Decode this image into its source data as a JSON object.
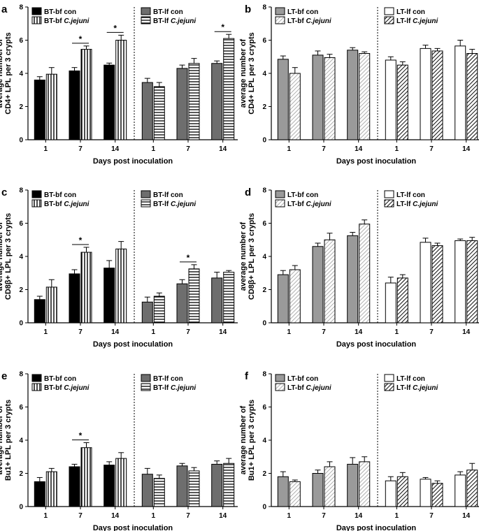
{
  "figure": {
    "xlabel": "Days post inoculation",
    "day_labels": [
      "1",
      "7",
      "14"
    ],
    "ylim": [
      0,
      8
    ],
    "yticks": [
      0,
      2,
      4,
      6,
      8
    ]
  },
  "colors": {
    "bt_bf_con": "#000000",
    "bt_lf_con": "#6e6e6e",
    "lt_bf_con": "#9a9a9a",
    "lt_lf_con": "#ffffff",
    "pattern_stroke": "#000000"
  },
  "chart_data": [
    {
      "panel": "a",
      "type": "bar",
      "ylabel_line1": "average number of",
      "ylabel_line2": "CD4+ LPL per 3 crypts",
      "legend": [
        {
          "group": "left",
          "name": "BT-bf con",
          "italic": "",
          "style": "solid_black"
        },
        {
          "group": "left",
          "name": "BT-bf ",
          "italic": "C.jejuni",
          "style": "vstripe"
        },
        {
          "group": "right",
          "name": "BT-lf con",
          "italic": "",
          "style": "solid_gray"
        },
        {
          "group": "right",
          "name": "BT-lf ",
          "italic": "C.jejuni",
          "style": "hstripe"
        }
      ],
      "categories": [
        "1",
        "7",
        "14"
      ],
      "series": [
        {
          "name": "BT-bf con",
          "style": "solid_black",
          "group": "left",
          "values": [
            3.6,
            4.15,
            4.5
          ],
          "errors": [
            0.2,
            0.2,
            0.12
          ]
        },
        {
          "name": "BT-bf C.jejuni",
          "style": "vstripe",
          "group": "left",
          "values": [
            3.95,
            5.45,
            6.0
          ],
          "errors": [
            0.4,
            0.2,
            0.3
          ]
        },
        {
          "name": "BT-lf con",
          "style": "solid_gray",
          "group": "right",
          "values": [
            3.45,
            4.3,
            4.6
          ],
          "errors": [
            0.25,
            0.2,
            0.15
          ]
        },
        {
          "name": "BT-lf C.jejuni",
          "style": "hstripe",
          "group": "right",
          "values": [
            3.2,
            4.6,
            6.1
          ],
          "errors": [
            0.25,
            0.3,
            0.25
          ]
        }
      ],
      "significance": [
        {
          "group": "left",
          "day": 1,
          "label": "*"
        },
        {
          "group": "left",
          "day": 2,
          "label": "*"
        },
        {
          "group": "right",
          "day": 2,
          "label": "*"
        }
      ]
    },
    {
      "panel": "b",
      "type": "bar",
      "ylabel_line1": "average number of",
      "ylabel_line2": "CD4+ LPL per 3 crypts",
      "legend": [
        {
          "group": "left",
          "name": "LT-bf con",
          "italic": "",
          "style": "solid_light"
        },
        {
          "group": "left",
          "name": "LT-bf ",
          "italic": "C.jejuni",
          "style": "dstripe_light"
        },
        {
          "group": "right",
          "name": "LT-lf con",
          "italic": "",
          "style": "solid_white"
        },
        {
          "group": "right",
          "name": "LT-lf ",
          "italic": "C.jejuni",
          "style": "dstripe_bold"
        }
      ],
      "categories": [
        "1",
        "7",
        "14"
      ],
      "series": [
        {
          "name": "LT-bf con",
          "style": "solid_light",
          "group": "left",
          "values": [
            4.85,
            5.1,
            5.4
          ],
          "errors": [
            0.2,
            0.25,
            0.15
          ]
        },
        {
          "name": "LT-bf C.jejuni",
          "style": "dstripe_light",
          "group": "left",
          "values": [
            4.0,
            4.95,
            5.2
          ],
          "errors": [
            0.35,
            0.2,
            0.1
          ]
        },
        {
          "name": "LT-lf con",
          "style": "solid_white",
          "group": "right",
          "values": [
            4.8,
            5.5,
            5.65
          ],
          "errors": [
            0.2,
            0.2,
            0.35
          ]
        },
        {
          "name": "LT-lf C.jejuni",
          "style": "dstripe_bold",
          "group": "right",
          "values": [
            4.5,
            5.35,
            5.2
          ],
          "errors": [
            0.2,
            0.15,
            0.25
          ]
        }
      ],
      "significance": []
    },
    {
      "panel": "c",
      "type": "bar",
      "ylabel_line1": "average number of",
      "ylabel_line2": "CD8β+ LPL per 3 crypts",
      "legend": [
        {
          "group": "left",
          "name": "BT-bf con",
          "italic": "",
          "style": "solid_black"
        },
        {
          "group": "left",
          "name": "BT-bf ",
          "italic": "C.jejuni",
          "style": "vstripe"
        },
        {
          "group": "right",
          "name": "BT-lf con",
          "italic": "",
          "style": "solid_gray"
        },
        {
          "group": "right",
          "name": "BT-lf ",
          "italic": "C.jejuni",
          "style": "hstripe"
        }
      ],
      "categories": [
        "1",
        "7",
        "14"
      ],
      "series": [
        {
          "name": "BT-bf con",
          "style": "solid_black",
          "group": "left",
          "values": [
            1.4,
            2.95,
            3.3
          ],
          "errors": [
            0.2,
            0.25,
            0.45
          ]
        },
        {
          "name": "BT-bf C.jejuni",
          "style": "vstripe",
          "group": "left",
          "values": [
            2.15,
            4.25,
            4.45
          ],
          "errors": [
            0.45,
            0.3,
            0.45
          ]
        },
        {
          "name": "BT-lf con",
          "style": "solid_gray",
          "group": "right",
          "values": [
            1.25,
            2.35,
            2.7
          ],
          "errors": [
            0.3,
            0.25,
            0.35
          ]
        },
        {
          "name": "BT-lf C.jejuni",
          "style": "hstripe",
          "group": "right",
          "values": [
            1.6,
            3.25,
            3.05
          ],
          "errors": [
            0.2,
            0.25,
            0.1
          ]
        }
      ],
      "significance": [
        {
          "group": "left",
          "day": 1,
          "label": "*"
        },
        {
          "group": "right",
          "day": 1,
          "label": "*"
        }
      ]
    },
    {
      "panel": "d",
      "type": "bar",
      "ylabel_line1": "average number of",
      "ylabel_line2": "CD8β+ LPL per 3 crypts",
      "legend": [
        {
          "group": "left",
          "name": "LT-bf con",
          "italic": "",
          "style": "solid_light"
        },
        {
          "group": "left",
          "name": "LT-bf ",
          "italic": "C.jejuni",
          "style": "dstripe_light"
        },
        {
          "group": "right",
          "name": "LT-lf con",
          "italic": "",
          "style": "solid_white"
        },
        {
          "group": "right",
          "name": "LT-lf ",
          "italic": "C.jejuni",
          "style": "dstripe_bold"
        }
      ],
      "categories": [
        "1",
        "7",
        "14"
      ],
      "series": [
        {
          "name": "LT-bf con",
          "style": "solid_light",
          "group": "left",
          "values": [
            2.9,
            4.6,
            5.25
          ],
          "errors": [
            0.25,
            0.2,
            0.2
          ]
        },
        {
          "name": "LT-bf C.jejuni",
          "style": "dstripe_light",
          "group": "left",
          "values": [
            3.2,
            5.0,
            5.95
          ],
          "errors": [
            0.25,
            0.4,
            0.25
          ]
        },
        {
          "name": "LT-lf con",
          "style": "solid_white",
          "group": "right",
          "values": [
            2.4,
            4.85,
            4.95
          ],
          "errors": [
            0.35,
            0.25,
            0.1
          ]
        },
        {
          "name": "LT-lf C.jejuni",
          "style": "dstripe_bold",
          "group": "right",
          "values": [
            2.7,
            4.65,
            4.95
          ],
          "errors": [
            0.2,
            0.15,
            0.2
          ]
        }
      ],
      "significance": []
    },
    {
      "panel": "e",
      "type": "bar",
      "ylabel_line1": "average number of",
      "ylabel_line2": "Bu1+ LPL per 3 crypts",
      "legend": [
        {
          "group": "left",
          "name": "BT-bf con",
          "italic": "",
          "style": "solid_black"
        },
        {
          "group": "left",
          "name": "BT-bf ",
          "italic": "C.jejuni",
          "style": "vstripe"
        },
        {
          "group": "right",
          "name": "BT-lf con",
          "italic": "",
          "style": "solid_gray"
        },
        {
          "group": "right",
          "name": "BT-lf ",
          "italic": "C.jejuni",
          "style": "hstripe"
        }
      ],
      "categories": [
        "1",
        "7",
        "14"
      ],
      "series": [
        {
          "name": "BT-bf con",
          "style": "solid_black",
          "group": "left",
          "values": [
            1.5,
            2.4,
            2.5
          ],
          "errors": [
            0.25,
            0.15,
            0.2
          ]
        },
        {
          "name": "BT-bf C.jejuni",
          "style": "vstripe",
          "group": "left",
          "values": [
            2.1,
            3.55,
            2.9
          ],
          "errors": [
            0.2,
            0.3,
            0.35
          ]
        },
        {
          "name": "BT-lf con",
          "style": "solid_gray",
          "group": "right",
          "values": [
            1.95,
            2.45,
            2.55
          ],
          "errors": [
            0.35,
            0.15,
            0.2
          ]
        },
        {
          "name": "BT-lf C.jejuni",
          "style": "hstripe",
          "group": "right",
          "values": [
            1.7,
            2.15,
            2.6
          ],
          "errors": [
            0.2,
            0.2,
            0.3
          ]
        }
      ],
      "significance": [
        {
          "group": "left",
          "day": 1,
          "label": "*"
        }
      ]
    },
    {
      "panel": "f",
      "type": "bar",
      "ylabel_line1": "average number of",
      "ylabel_line2": "Bu1+ LPL per 3 crypts",
      "legend": [
        {
          "group": "left",
          "name": "LT-bf con",
          "italic": "",
          "style": "solid_light"
        },
        {
          "group": "left",
          "name": "LT-bf ",
          "italic": "C.jejuni",
          "style": "dstripe_light"
        },
        {
          "group": "right",
          "name": "LT-lf con",
          "italic": "",
          "style": "solid_white"
        },
        {
          "group": "right",
          "name": "LT-lf ",
          "italic": "C.jejuni",
          "style": "dstripe_bold"
        }
      ],
      "categories": [
        "1",
        "7",
        "14"
      ],
      "series": [
        {
          "name": "LT-bf con",
          "style": "solid_light",
          "group": "left",
          "values": [
            1.8,
            2.0,
            2.55
          ],
          "errors": [
            0.3,
            0.2,
            0.4
          ]
        },
        {
          "name": "LT-bf C.jejuni",
          "style": "dstripe_light",
          "group": "left",
          "values": [
            1.5,
            2.4,
            2.7
          ],
          "errors": [
            0.1,
            0.3,
            0.3
          ]
        },
        {
          "name": "LT-lf con",
          "style": "solid_white",
          "group": "right",
          "values": [
            1.55,
            1.65,
            1.9
          ],
          "errors": [
            0.25,
            0.1,
            0.2
          ]
        },
        {
          "name": "LT-lf C.jejuni",
          "style": "dstripe_bold",
          "group": "right",
          "values": [
            1.8,
            1.4,
            2.2
          ],
          "errors": [
            0.25,
            0.15,
            0.4
          ]
        }
      ],
      "significance": []
    }
  ]
}
